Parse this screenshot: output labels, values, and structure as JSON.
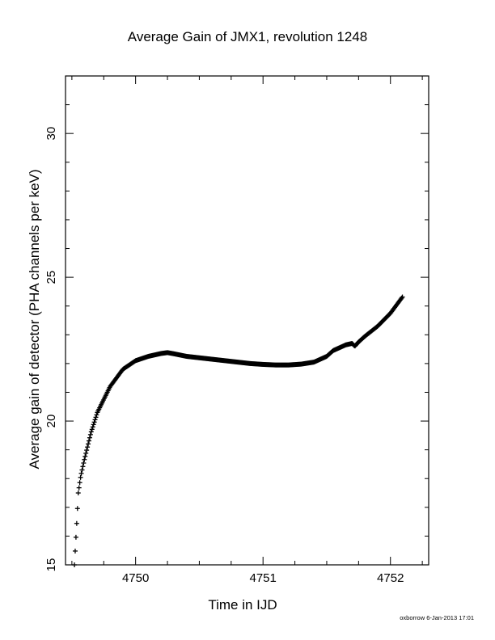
{
  "chart_data": {
    "type": "scatter",
    "title": "Average Gain of JMX1, revolution 1248",
    "xlabel": "Time in IJD",
    "ylabel": "Average gain of detector (PHA channels per keV)",
    "xlim": [
      4749.45,
      4752.3
    ],
    "ylim": [
      15,
      32
    ],
    "xticks": [
      4750,
      4751,
      4752
    ],
    "yticks": [
      15,
      20,
      25,
      30
    ],
    "grid": false,
    "marker": "+",
    "series": [
      {
        "x": [
          4749.52,
          4749.53,
          4749.54,
          4749.55,
          4749.57,
          4749.6,
          4749.65,
          4749.7,
          4749.8,
          4749.9,
          4750.0,
          4750.1,
          4750.2,
          4750.25,
          4750.3,
          4750.4,
          4750.5,
          4750.6,
          4750.7,
          4750.8,
          4750.9,
          4751.0,
          4751.1,
          4751.2,
          4751.3,
          4751.4,
          4751.5,
          4751.55,
          4751.6,
          4751.65,
          4751.7,
          4751.72,
          4751.75,
          4751.8,
          4751.9,
          4752.0,
          4752.05,
          4752.1
        ],
        "y": [
          15.0,
          15.8,
          16.6,
          17.5,
          18.1,
          18.7,
          19.6,
          20.3,
          21.2,
          21.8,
          22.1,
          22.25,
          22.35,
          22.38,
          22.34,
          22.25,
          22.2,
          22.15,
          22.1,
          22.05,
          22.0,
          21.97,
          21.95,
          21.95,
          21.98,
          22.05,
          22.25,
          22.45,
          22.55,
          22.65,
          22.7,
          22.6,
          22.75,
          22.95,
          23.3,
          23.75,
          24.05,
          24.35
        ]
      }
    ]
  },
  "footer": "oxborrow  6-Jan-2013 17:01"
}
